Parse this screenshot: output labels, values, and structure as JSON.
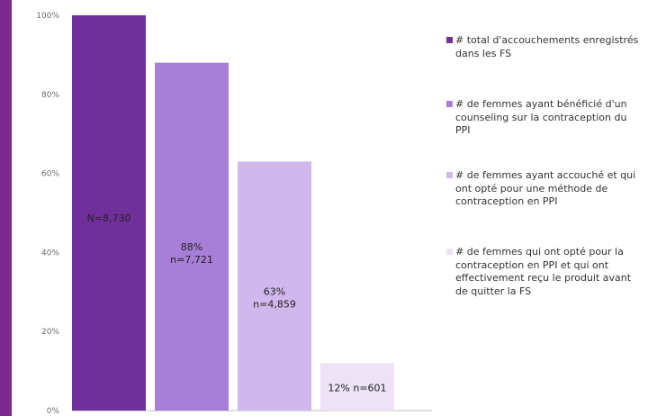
{
  "colors": {
    "accent": "#7b2a8c",
    "axis": "#bfbfbf",
    "series": [
      "#70309c",
      "#a87fd6",
      "#d1b8ec",
      "#ece3f6"
    ]
  },
  "chart_data": {
    "type": "bar",
    "categories": [
      "# total d'accouchements enregistrés dans les FS",
      "# de femmes ayant bénéficié d'un counseling sur la contraception du PPI",
      "# de femmes ayant accouché et qui ont opté pour une méthode de contraception en PPI",
      "# de femmes qui ont opté pour la contraception en PPI et qui ont effectivement reçu le produit avant de quitter la FS"
    ],
    "values": [
      100,
      88,
      63,
      12
    ],
    "counts": [
      8730,
      7721,
      4859,
      601
    ],
    "data_labels": [
      [
        "N=8,730"
      ],
      [
        "88%",
        "n=7,721"
      ],
      [
        "63%",
        "n=4,859"
      ],
      [
        "12% n=601"
      ]
    ],
    "y_ticks": [
      "0%",
      "20%",
      "40%",
      "60%",
      "80%",
      "100%"
    ],
    "ylim": [
      0,
      100
    ],
    "grid": false,
    "legend_position": "right"
  },
  "legend": {
    "items": [
      {
        "lines": [
          "# total d'accouchements enregistrés",
          "dans les FS"
        ]
      },
      {
        "lines": [
          "# de femmes ayant bénéficié d'un",
          "counseling sur la contraception du",
          "PPI"
        ]
      },
      {
        "lines": [
          "# de femmes ayant accouché et qui",
          "ont opté pour une méthode de",
          "contraception en PPI"
        ]
      },
      {
        "lines": [
          "# de femmes qui ont opté pour la",
          "contraception en PPI et qui ont",
          "effectivement reçu le produit avant",
          "de quitter la FS"
        ]
      }
    ]
  }
}
